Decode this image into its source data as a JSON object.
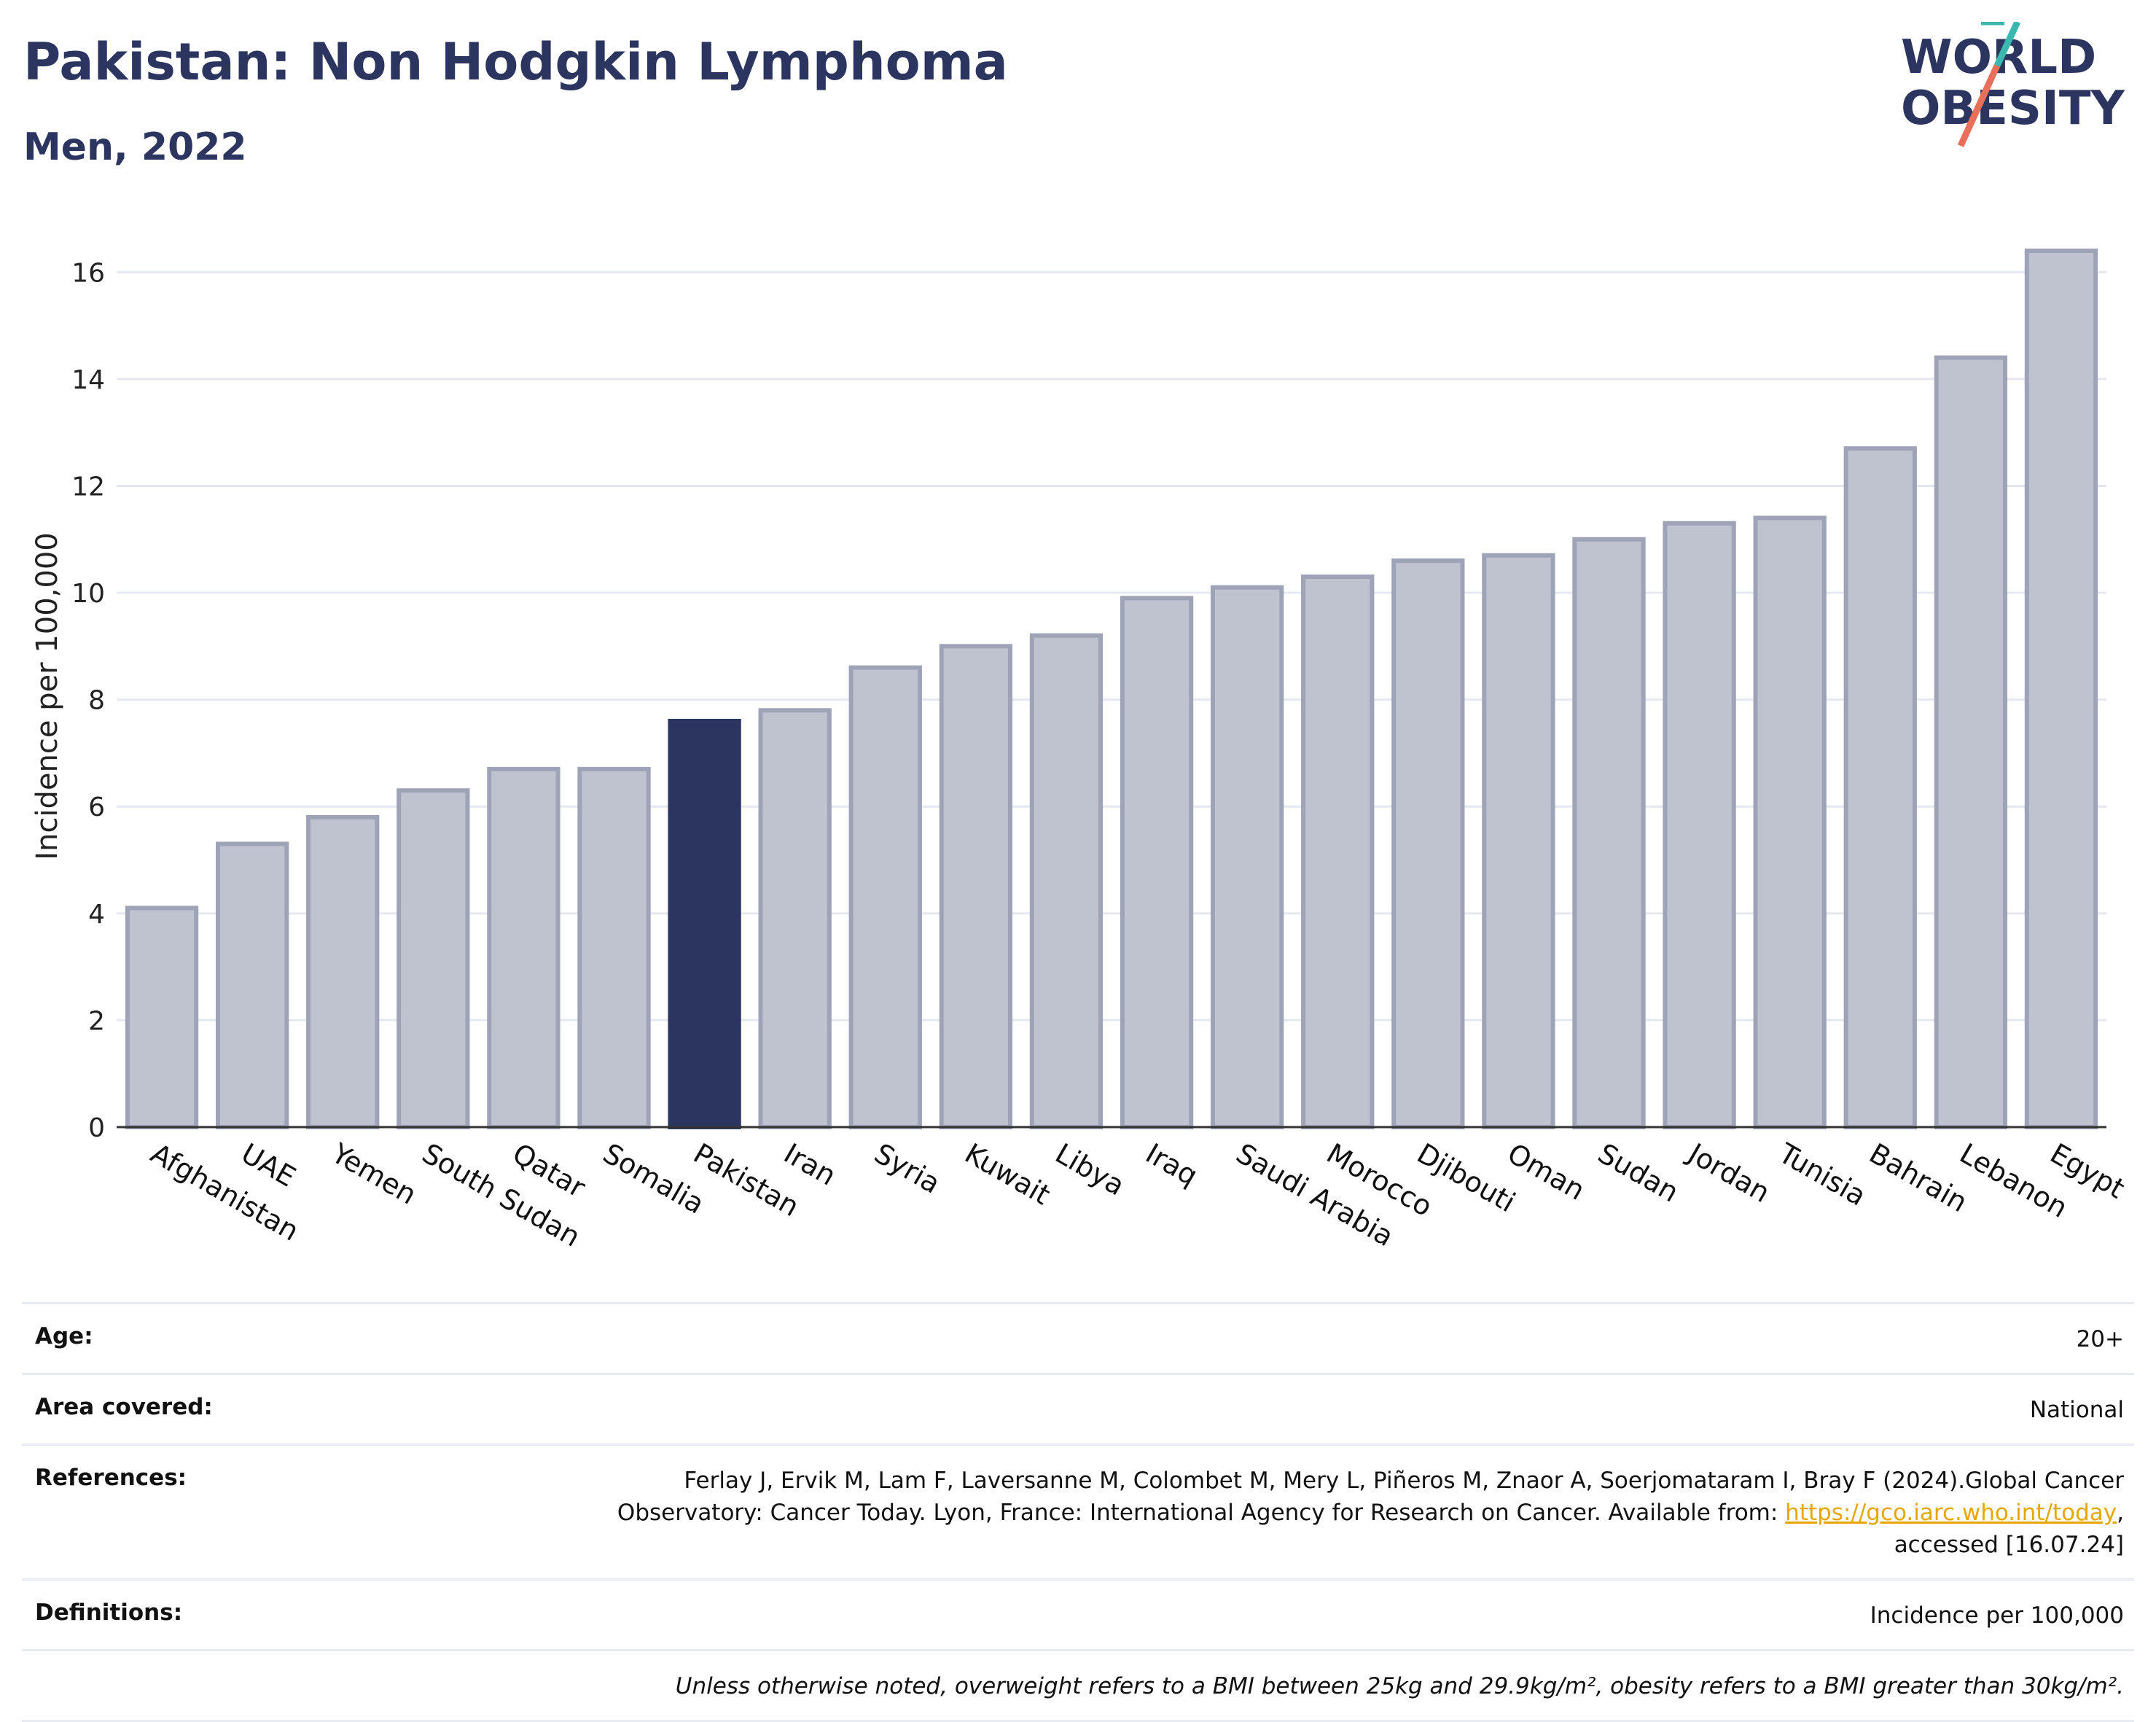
{
  "header": {
    "title": "Pakistan: Non Hodgkin Lymphoma",
    "subtitle": "Men, 2022"
  },
  "logo": {
    "line1": "WORLD",
    "line2": "OBESITY",
    "accent_colors": [
      "#3ab8b0",
      "#e8705a"
    ]
  },
  "chart_data": {
    "type": "bar",
    "title": "Pakistan: Non Hodgkin Lymphoma",
    "subtitle": "Men, 2022",
    "xlabel": "",
    "ylabel": "Incidence per 100,000",
    "ylim": [
      0,
      17
    ],
    "yticks": [
      0,
      2,
      4,
      6,
      8,
      10,
      12,
      14,
      16
    ],
    "grid": true,
    "highlight": "Pakistan",
    "colors": {
      "bar": "#bfc2cf",
      "bar_edge": "#9ea3b8",
      "highlight": "#2b3560"
    },
    "categories": [
      "Afghanistan",
      "UAE",
      "Yemen",
      "South Sudan",
      "Qatar",
      "Somalia",
      "Pakistan",
      "Iran",
      "Syria",
      "Kuwait",
      "Libya",
      "Iraq",
      "Saudi Arabia",
      "Morocco",
      "Djibouti",
      "Oman",
      "Sudan",
      "Jordan",
      "Tunisia",
      "Bahrain",
      "Lebanon",
      "Egypt"
    ],
    "values": [
      4.1,
      5.3,
      5.8,
      6.3,
      6.7,
      6.7,
      7.6,
      7.8,
      8.6,
      9.0,
      9.2,
      9.9,
      10.1,
      10.3,
      10.6,
      10.7,
      11.0,
      11.3,
      11.4,
      12.7,
      14.4,
      16.4
    ]
  },
  "info": {
    "age_label": "Age:",
    "age_value": "20+",
    "area_label": "Area covered:",
    "area_value": "National",
    "refs_label": "References:",
    "refs_text1": "Ferlay J, Ervik M, Lam F, Laversanne M, Colombet M, Mery L, Piñeros M, Znaor A, Soerjomataram I, Bray F (2024).Global Cancer",
    "refs_text2": "Observatory: Cancer Today. Lyon, France: International Agency for Research on Cancer. Available from: ",
    "refs_link": "https://gco.iarc.who.int/today",
    "refs_text3": "accessed [16.07.24]",
    "defs_label": "Definitions:",
    "defs_value": "Incidence per 100,000",
    "note": "Unless otherwise noted, overweight refers to a BMI between 25kg and 29.9kg/m², obesity refers to a BMI greater than 30kg/m²."
  }
}
